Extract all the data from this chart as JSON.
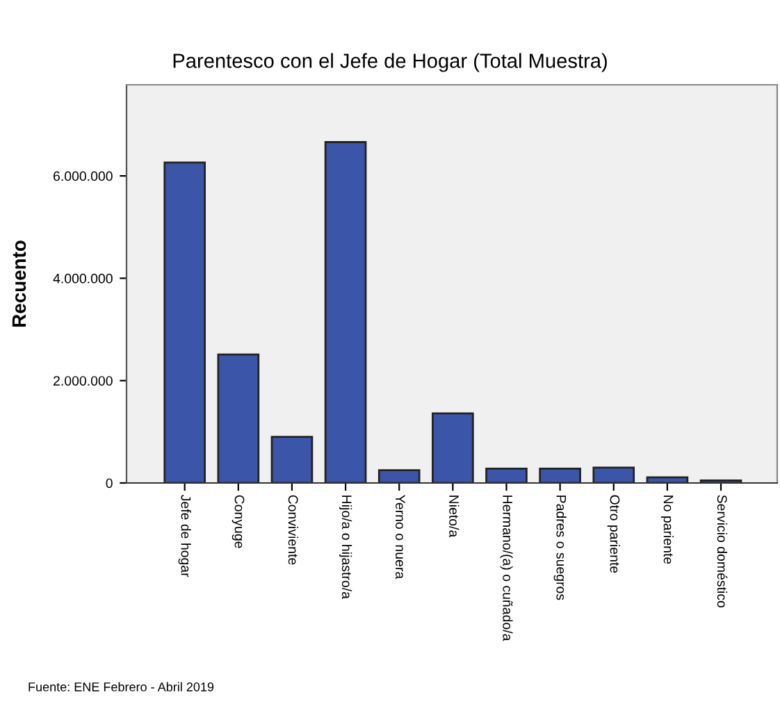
{
  "chart_data": {
    "type": "bar",
    "title": "Parentesco con el Jefe de Hogar (Total Muestra)",
    "ylabel": "Recuento",
    "categories": [
      "Jefe de hogar",
      "Conyuge",
      "Conviviente",
      "Hijo/a o hijastro/a",
      "Yerno o nuera",
      "Nieto/a",
      "Hermano/(a) o cuñado/a",
      "Padres o suegros",
      "Otro pariente",
      "No pariente",
      "Servicio doméstico"
    ],
    "values": [
      6260000,
      2510000,
      900000,
      6660000,
      250000,
      1360000,
      280000,
      280000,
      300000,
      110000,
      50000
    ],
    "color": "#3b56a8",
    "ylim": [
      0,
      7780000
    ],
    "yticks": [
      {
        "value": 0,
        "label": "0"
      },
      {
        "value": 2000000,
        "label": "2.000.000"
      },
      {
        "value": 4000000,
        "label": "4.000.000"
      },
      {
        "value": 6000000,
        "label": "6.000.000"
      }
    ],
    "grid": false,
    "annotations": [
      "Fuente: ENE Febrero - Abril 2019"
    ]
  }
}
